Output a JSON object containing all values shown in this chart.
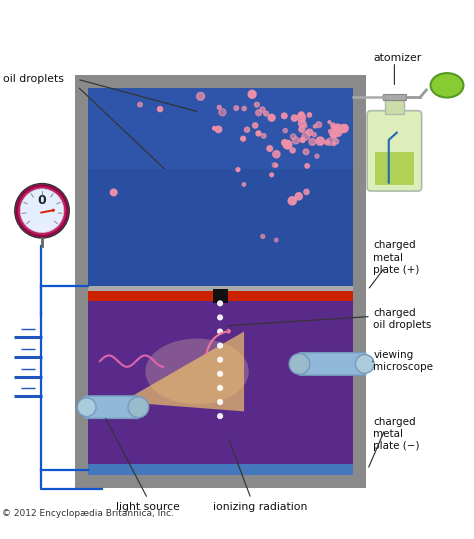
{
  "fig_width": 4.74,
  "fig_height": 5.39,
  "dpi": 100,
  "bg_color": "#ffffff",
  "copyright": "© 2012 Encyclopædia Britannica, Inc.",
  "labels": {
    "oil_droplets": "oil droplets",
    "atomizer": "atomizer",
    "charged_metal_plus": "charged\nmetal\nplate (+)",
    "charged_oil": "charged\noil droplets",
    "viewing_microscope": "viewing\nmicroscope",
    "charged_metal_minus": "charged\nmetal\nplate (−)",
    "light_source": "light source",
    "ionizing_radiation": "ionizing radiation"
  },
  "colors": {
    "outer_frame": "#8a8a8a",
    "inner_top_bg": "#2a4fa0",
    "inner_bottom_bg": "#5a2a8a",
    "top_plate_red": "#cc2200",
    "bottom_plate_blue": "#4477bb",
    "droplet": "#f090a8",
    "microscope_body": "#90b8d8",
    "battery_blue": "#2255bb",
    "voltmeter_outer": "#bb2266",
    "voltmeter_inner": "#e8eeff",
    "wire_color": "#1155cc",
    "label_color": "#111111",
    "wavy_line": "#dd66aa",
    "pink_arrow": "#ee7799",
    "light_yellow": "#f8cc66",
    "bottle_glass": "#ddeebb",
    "bottle_liquid": "#aacc44",
    "bottle_green": "#88bb22",
    "bulb_green": "#88cc33"
  }
}
